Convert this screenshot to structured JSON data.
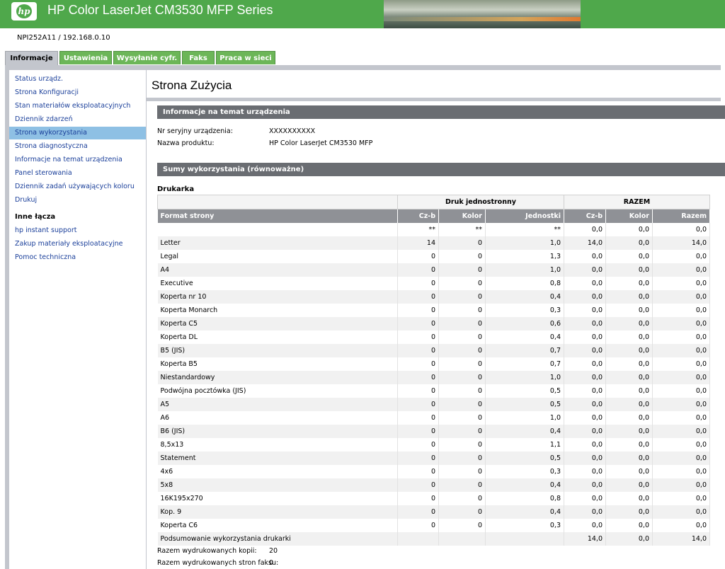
{
  "header": {
    "logo_text": "hp",
    "title": "HP Color LaserJet CM3530 MFP Series"
  },
  "device_id": "NPI252A11 / 192.168.0.10",
  "tabs": [
    {
      "label": "Informacje",
      "active": true
    },
    {
      "label": "Ustawienia"
    },
    {
      "label": "Wysyłanie cyfr."
    },
    {
      "label": "Faks"
    },
    {
      "label": "Praca w sieci"
    }
  ],
  "sidebar": {
    "items": [
      {
        "label": "Status urządz."
      },
      {
        "label": "Strona Konfiguracji"
      },
      {
        "label": "Stan materiałów eksploatacyjnych"
      },
      {
        "label": "Dziennik zdarzeń"
      },
      {
        "label": "Strona wykorzystania",
        "active": true
      },
      {
        "label": "Strona diagnostyczna"
      },
      {
        "label": "Informacje na temat urządzenia"
      },
      {
        "label": "Panel sterowania"
      },
      {
        "label": "Dziennik zadań używających koloru"
      },
      {
        "label": "Drukuj"
      }
    ],
    "other_links_heading": "Inne łącza",
    "other_links": [
      {
        "label": "hp instant support"
      },
      {
        "label": "Zakup materiały eksploatacyjne"
      },
      {
        "label": "Pomoc techniczna"
      }
    ]
  },
  "main": {
    "page_title": "Strona Zużycia",
    "device_info": {
      "heading": "Informacje na temat urządzenia",
      "serial_label": "Nr seryjny urządzenia:",
      "serial_value": "XXXXXXXXXX",
      "product_label": "Nazwa produktu:",
      "product_value": "HP Color LaserJet CM3530 MFP"
    },
    "usage": {
      "heading": "Sumy wykorzystania (równoważne)",
      "printer_label": "Drukarka",
      "group_simplex": "Druk jednostronny",
      "group_total": "RAZEM",
      "columns": [
        "Format strony",
        "Cz-b",
        "Kolor",
        "Jednostki",
        "Cz-b",
        "Kolor",
        "Razem"
      ],
      "rows": [
        [
          "",
          "**",
          "**",
          "**",
          "0,0",
          "0,0",
          "0,0"
        ],
        [
          "Letter",
          "14",
          "0",
          "1,0",
          "14,0",
          "0,0",
          "14,0"
        ],
        [
          "Legal",
          "0",
          "0",
          "1,3",
          "0,0",
          "0,0",
          "0,0"
        ],
        [
          "A4",
          "0",
          "0",
          "1,0",
          "0,0",
          "0,0",
          "0,0"
        ],
        [
          "Executive",
          "0",
          "0",
          "0,8",
          "0,0",
          "0,0",
          "0,0"
        ],
        [
          "Koperta nr 10",
          "0",
          "0",
          "0,4",
          "0,0",
          "0,0",
          "0,0"
        ],
        [
          "Koperta Monarch",
          "0",
          "0",
          "0,3",
          "0,0",
          "0,0",
          "0,0"
        ],
        [
          "Koperta C5",
          "0",
          "0",
          "0,6",
          "0,0",
          "0,0",
          "0,0"
        ],
        [
          "Koperta DL",
          "0",
          "0",
          "0,4",
          "0,0",
          "0,0",
          "0,0"
        ],
        [
          "B5 (JIS)",
          "0",
          "0",
          "0,7",
          "0,0",
          "0,0",
          "0,0"
        ],
        [
          "Koperta B5",
          "0",
          "0",
          "0,7",
          "0,0",
          "0,0",
          "0,0"
        ],
        [
          "Niestandardowy",
          "0",
          "0",
          "1,0",
          "0,0",
          "0,0",
          "0,0"
        ],
        [
          "Podwójna pocztówka (JIS)",
          "0",
          "0",
          "0,5",
          "0,0",
          "0,0",
          "0,0"
        ],
        [
          "A5",
          "0",
          "0",
          "0,5",
          "0,0",
          "0,0",
          "0,0"
        ],
        [
          "A6",
          "0",
          "0",
          "1,0",
          "0,0",
          "0,0",
          "0,0"
        ],
        [
          "B6 (JIS)",
          "0",
          "0",
          "0,4",
          "0,0",
          "0,0",
          "0,0"
        ],
        [
          "8,5x13",
          "0",
          "0",
          "1,1",
          "0,0",
          "0,0",
          "0,0"
        ],
        [
          "Statement",
          "0",
          "0",
          "0,5",
          "0,0",
          "0,0",
          "0,0"
        ],
        [
          "4x6",
          "0",
          "0",
          "0,3",
          "0,0",
          "0,0",
          "0,0"
        ],
        [
          "5x8",
          "0",
          "0",
          "0,4",
          "0,0",
          "0,0",
          "0,0"
        ],
        [
          "16K195x270",
          "0",
          "0",
          "0,8",
          "0,0",
          "0,0",
          "0,0"
        ],
        [
          "Kop. 9",
          "0",
          "0",
          "0,4",
          "0,0",
          "0,0",
          "0,0"
        ],
        [
          "Koperta C6",
          "0",
          "0",
          "0,3",
          "0,0",
          "0,0",
          "0,0"
        ],
        [
          "Podsumowanie wykorzystania drukarki",
          "",
          "",
          "",
          "14,0",
          "0,0",
          "14,0"
        ]
      ],
      "copies_label": "Razem wydrukowanych kopii:",
      "copies_value": "20",
      "fax_label": "Razem wydrukowanych stron faksu:",
      "fax_value": "0"
    }
  },
  "colors": {
    "header_green": "#4fa84b",
    "tab_green": "#6cb658",
    "section_bar": "#6a6d72",
    "table_header": "#8f9196",
    "link_blue": "#1a3f9a",
    "active_item": "#8ec0e4"
  }
}
